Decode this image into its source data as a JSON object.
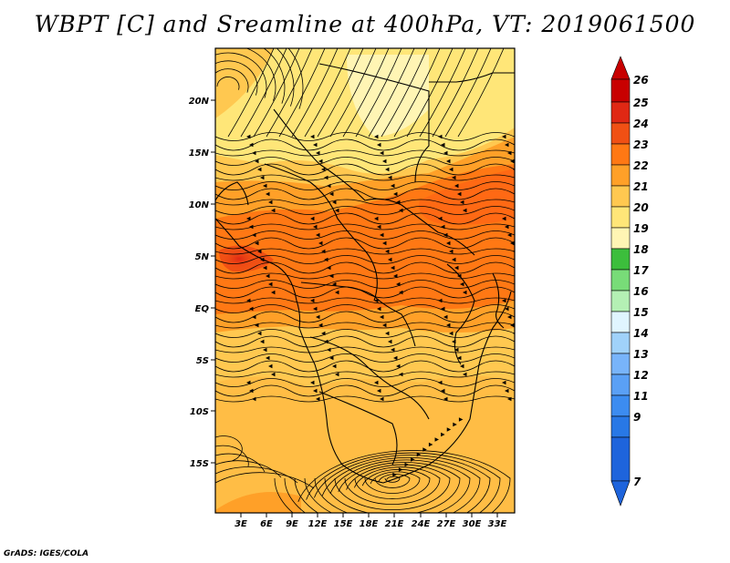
{
  "title": "WBPT [C] and Sreamline at 400hPa, VT: 2019061500",
  "credit": "GrADS: IGES/COLA",
  "map": {
    "variable": "WBPT",
    "units": "C",
    "level": "400hPa",
    "valid_time": "2019061500",
    "lat_ticks": [
      "20N",
      "15N",
      "10N",
      "5N",
      "EQ",
      "5S",
      "10S",
      "15S"
    ],
    "lon_ticks": [
      "3E",
      "6E",
      "9E",
      "12E",
      "15E",
      "18E",
      "21E",
      "24E",
      "27E",
      "30E",
      "33E"
    ]
  },
  "colorbar": {
    "labels": [
      "7",
      "9",
      "11",
      "12",
      "13",
      "14",
      "15",
      "16",
      "17",
      "18",
      "19",
      "20",
      "21",
      "22",
      "23",
      "24",
      "25",
      "26"
    ],
    "colors": [
      "#1e64dc",
      "#2878e6",
      "#3c8cf0",
      "#5aa0f5",
      "#78b4fa",
      "#a0d2fa",
      "#e0f5ff",
      "#b4f0b4",
      "#78dc78",
      "#3cbe3c",
      "#fff5b4",
      "#ffe678",
      "#ffc850",
      "#ffa028",
      "#ff7814",
      "#f05014",
      "#e02814",
      "#c80000"
    ]
  },
  "colors": {
    "shade_20_21": "#ffc850",
    "shade_21_22": "#ffa028",
    "shade_22_23": "#ff7814",
    "shade_23_24": "#f05014",
    "shade_19_20": "#ffe678",
    "shade_24_25": "#e02814"
  }
}
